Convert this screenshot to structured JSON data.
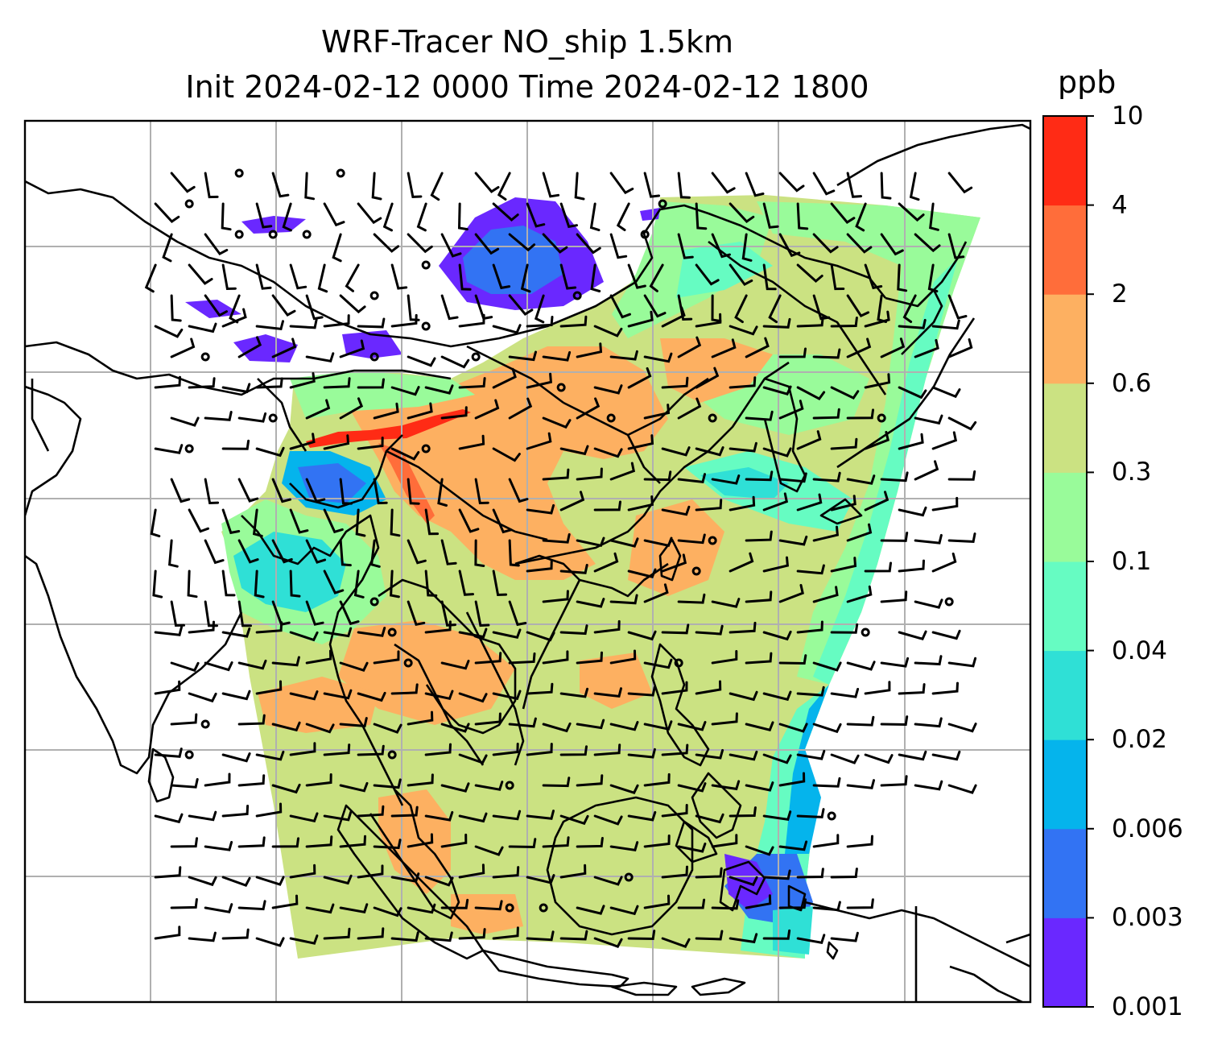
{
  "title": {
    "line1": "WRF-Tracer NO_ship 1.5km",
    "line2": "Init 2024-02-12 0000 Time 2024-02-12 1800"
  },
  "colorbar": {
    "unit": "ppb",
    "levels": [
      "0.001",
      "0.003",
      "0.006",
      "0.02",
      "0.04",
      "0.1",
      "0.3",
      "0.6",
      "2",
      "4",
      "10"
    ],
    "colors": [
      "#6a28ff",
      "#3273f3",
      "#05b4ec",
      "#2fe0d6",
      "#66fcc2",
      "#99fb9a",
      "#cbe282",
      "#fdb061",
      "#ff6d3a",
      "#ff2b15"
    ]
  },
  "map": {
    "gridlines": true,
    "coastline_color": "#000000",
    "barb_color": "#000000",
    "field": "NO_ship",
    "level": "1.5km"
  }
}
